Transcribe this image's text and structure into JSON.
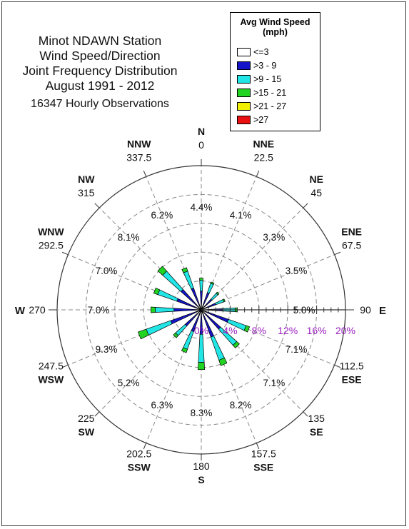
{
  "title": {
    "lines": [
      "Minot NDAWN Station",
      "Wind Speed/Direction",
      "Joint Frequency Distribution",
      "August 1991 - 2012"
    ],
    "observations": "16347 Hourly Observations"
  },
  "legend": {
    "title_line1": "Avg Wind Speed",
    "title_line2": "(mph)",
    "items": [
      {
        "label": "<=3",
        "color": "#ffffff"
      },
      {
        "label": ">3 - 9",
        "color": "#1414c8"
      },
      {
        "label": ">9 - 15",
        "color": "#22e6e6"
      },
      {
        "label": ">15 - 21",
        "color": "#22d422"
      },
      {
        "label": ">21 - 27",
        "color": "#f0f000"
      },
      {
        "label": ">27",
        "color": "#e81010"
      }
    ]
  },
  "colors": {
    "radial_axis_labels": "#9b1fbf",
    "axis": "#333333",
    "gridline": "#888888"
  },
  "chart_data": {
    "type": "windrose",
    "radial_axis": {
      "min": 0,
      "max": 20,
      "ticks": [
        0,
        4,
        8,
        12,
        16,
        20
      ],
      "tick_labels": [
        "0%",
        "4%",
        "8%",
        "12%",
        "16%",
        "20%"
      ],
      "gridline_values": [
        4,
        8,
        12,
        16
      ],
      "grid_style": "dashed"
    },
    "directions": [
      {
        "deg": 0,
        "name": "N",
        "deg_label": "0",
        "percent_label": "4.4%"
      },
      {
        "deg": 22.5,
        "name": "NNE",
        "deg_label": "22.5",
        "percent_label": "4.1%"
      },
      {
        "deg": 45,
        "name": "NE",
        "deg_label": "45",
        "percent_label": "3.3%"
      },
      {
        "deg": 67.5,
        "name": "ENE",
        "deg_label": "67.5",
        "percent_label": "3.5%"
      },
      {
        "deg": 90,
        "name": "E",
        "deg_label": "90",
        "percent_label": "5.0%"
      },
      {
        "deg": 112.5,
        "name": "ESE",
        "deg_label": "112.5",
        "percent_label": "7.1%"
      },
      {
        "deg": 135,
        "name": "SE",
        "deg_label": "135",
        "percent_label": "7.1%"
      },
      {
        "deg": 157.5,
        "name": "SSE",
        "deg_label": "157.5",
        "percent_label": "8.2%"
      },
      {
        "deg": 180,
        "name": "S",
        "deg_label": "180",
        "percent_label": "8.3%"
      },
      {
        "deg": 202.5,
        "name": "SSW",
        "deg_label": "202.5",
        "percent_label": "6.3%"
      },
      {
        "deg": 225,
        "name": "SW",
        "deg_label": "225",
        "percent_label": "5.2%"
      },
      {
        "deg": 247.5,
        "name": "WSW",
        "deg_label": "247.5",
        "percent_label": "9.3%"
      },
      {
        "deg": 270,
        "name": "W",
        "deg_label": "270",
        "percent_label": "7.0%"
      },
      {
        "deg": 292.5,
        "name": "WNW",
        "deg_label": "292.5",
        "percent_label": "7.0%"
      },
      {
        "deg": 315,
        "name": "NW",
        "deg_label": "315",
        "percent_label": "8.1%"
      },
      {
        "deg": 337.5,
        "name": "NNW",
        "deg_label": "337.5",
        "percent_label": "6.2%"
      }
    ],
    "series": [
      {
        "name": "<=3",
        "values": [
          0,
          0,
          0,
          0,
          0,
          0,
          0,
          0,
          0,
          0,
          0,
          0,
          0,
          0,
          0,
          0
        ]
      },
      {
        "name": ">3 - 9",
        "values": [
          2.6,
          2.5,
          2.0,
          2.1,
          2.9,
          4.0,
          3.6,
          4.0,
          3.4,
          3.2,
          3.0,
          4.5,
          3.8,
          3.6,
          3.8,
          3.2
        ]
      },
      {
        "name": ">9 - 15",
        "values": [
          1.5,
          1.4,
          1.1,
          1.2,
          1.8,
          2.6,
          3.0,
          3.4,
          3.9,
          2.6,
          1.8,
          3.6,
          2.6,
          2.8,
          3.4,
          2.5
        ]
      },
      {
        "name": ">15 - 21",
        "values": [
          0.3,
          0.2,
          0.2,
          0.2,
          0.3,
          0.5,
          0.5,
          0.8,
          1.0,
          0.5,
          0.4,
          1.2,
          0.6,
          0.6,
          0.9,
          0.5
        ]
      },
      {
        "name": ">21 - 27",
        "values": [
          0,
          0,
          0,
          0,
          0,
          0,
          0,
          0,
          0,
          0,
          0,
          0,
          0,
          0,
          0,
          0
        ]
      },
      {
        "name": ">27",
        "values": [
          0,
          0,
          0,
          0,
          0,
          0,
          0,
          0,
          0,
          0,
          0,
          0,
          0,
          0,
          0,
          0
        ]
      }
    ]
  }
}
